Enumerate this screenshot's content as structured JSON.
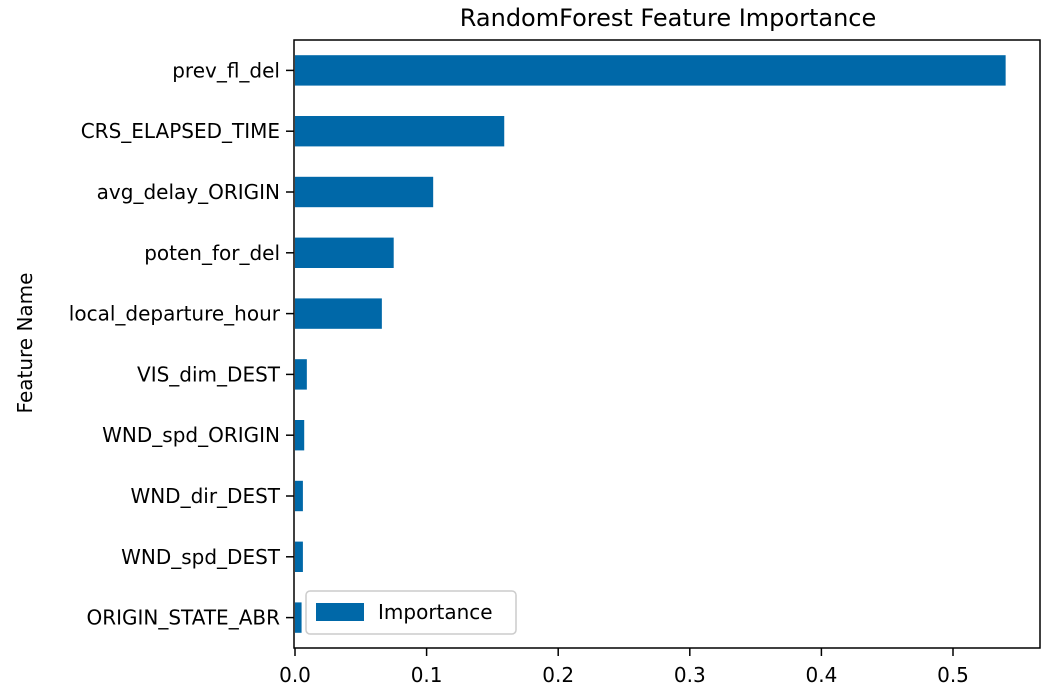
{
  "chart_data": {
    "type": "bar",
    "orientation": "horizontal",
    "title": "RandomForest Feature Importance",
    "xlabel": "",
    "ylabel": "Feature Name",
    "categories": [
      "prev_fl_del",
      "CRS_ELAPSED_TIME",
      "avg_delay_ORIGIN",
      "poten_for_del",
      "local_departure_hour",
      "VIS_dim_DEST",
      "WND_spd_ORIGIN",
      "WND_dir_DEST",
      "WND_spd_DEST",
      "ORIGIN_STATE_ABR"
    ],
    "series": [
      {
        "name": "Importance",
        "values": [
          0.54,
          0.159,
          0.105,
          0.075,
          0.066,
          0.009,
          0.007,
          0.006,
          0.006,
          0.005
        ]
      }
    ],
    "xlim": [
      0,
      0.56
    ],
    "xticks": [
      0.0,
      0.1,
      0.2,
      0.3,
      0.4,
      0.5
    ],
    "xtick_labels": [
      "0.0",
      "0.1",
      "0.2",
      "0.3",
      "0.4",
      "0.5"
    ],
    "grid": false,
    "legend": "lower-left",
    "bar_color": "#0068a8"
  }
}
